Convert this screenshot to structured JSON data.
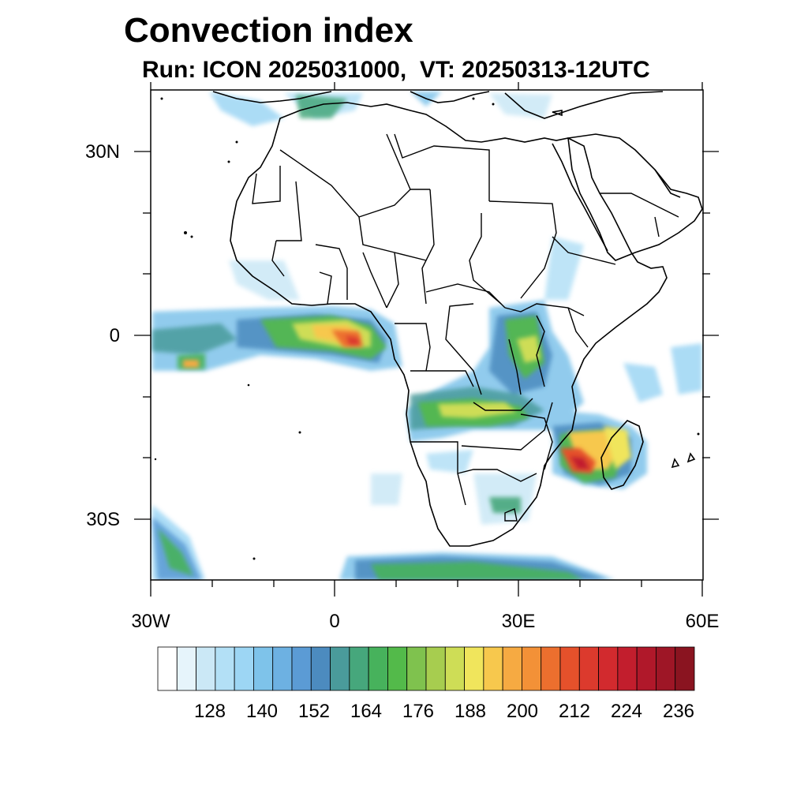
{
  "title": "Convection index",
  "subtitle": "Run: ICON 2025031000,  VT: 20250313-12UTC",
  "axes": {
    "lat_labels": [
      "30N",
      "0",
      "30S"
    ],
    "lon_labels": [
      "30W",
      "0",
      "30E",
      "60E"
    ]
  },
  "colorbar": {
    "labels": [
      "128",
      "140",
      "152",
      "164",
      "176",
      "188",
      "200",
      "212",
      "224",
      "236"
    ],
    "colors": [
      "#ffffff",
      "#e6f4fb",
      "#cbe8f6",
      "#b3e0f6",
      "#9dd6f4",
      "#7ec3ea",
      "#6db1e2",
      "#5b9bd5",
      "#4c8bbf",
      "#4a9b9b",
      "#46a77c",
      "#47b25c",
      "#53ba4a",
      "#7fc24e",
      "#a7cd4f",
      "#cedd56",
      "#f0e55c",
      "#f7c84d",
      "#f6aa42",
      "#f39137",
      "#ec6f2e",
      "#e5512b",
      "#dc3a2d",
      "#d22a2e",
      "#c21e2d",
      "#b0182a",
      "#9e1626",
      "#8a1420"
    ]
  }
}
